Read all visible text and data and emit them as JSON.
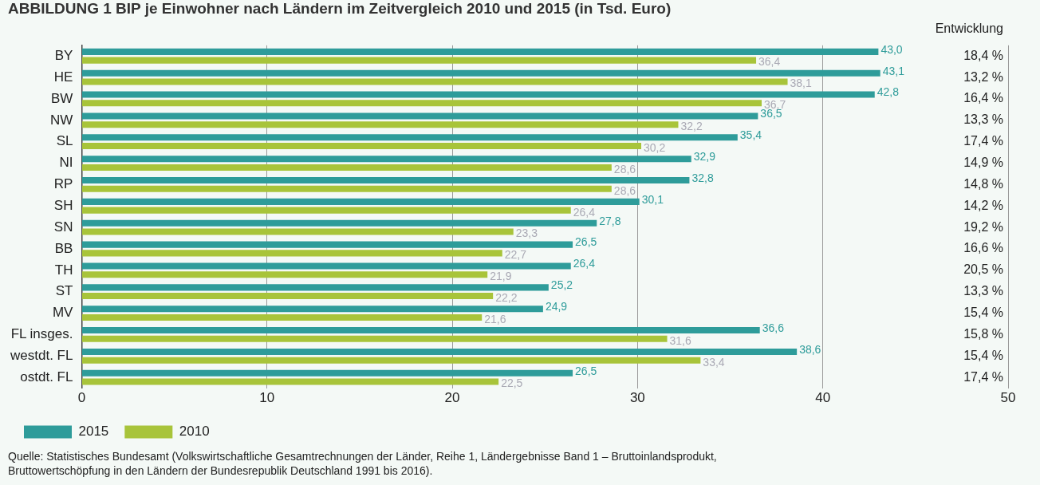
{
  "chart_data": {
    "type": "bar",
    "orientation": "horizontal",
    "title": "ABBILDUNG 1 BIP je Einwohner nach Ländern im Zeitvergleich 2010 und 2015 (in Tsd. Euro)",
    "categories": [
      "BY",
      "HE",
      "BW",
      "NW",
      "SL",
      "NI",
      "RP",
      "SH",
      "SN",
      "BB",
      "TH",
      "ST",
      "MV",
      "FL insges.",
      "westdt. FL",
      "ostdt. FL"
    ],
    "series": [
      {
        "name": "2015",
        "color": "#2e9c9a",
        "values": [
          43.0,
          43.1,
          42.8,
          36.5,
          35.4,
          32.9,
          32.8,
          30.1,
          27.8,
          26.5,
          26.4,
          25.2,
          24.9,
          36.6,
          38.6,
          26.5
        ],
        "value_labels": [
          "43,0",
          "43,1",
          "42,8",
          "36,5",
          "35,4",
          "32,9",
          "32,8",
          "30,1",
          "27,8",
          "26,5",
          "26,4",
          "25,2",
          "24,9",
          "36,6",
          "38,6",
          "26,5"
        ]
      },
      {
        "name": "2010",
        "color": "#a8c43a",
        "values": [
          36.4,
          38.1,
          36.7,
          32.2,
          30.2,
          28.6,
          28.6,
          26.4,
          23.3,
          22.7,
          21.9,
          22.2,
          21.6,
          31.6,
          33.4,
          22.5
        ],
        "value_labels": [
          "36,4",
          "38,1",
          "36,7",
          "32,2",
          "30,2",
          "28,6",
          "28,6",
          "26,4",
          "23,3",
          "22,7",
          "21,9",
          "22,2",
          "21,6",
          "31,6",
          "33,4",
          "22,5"
        ]
      }
    ],
    "xlim": [
      0,
      50
    ],
    "xticks": [
      0,
      10,
      20,
      30,
      40,
      50
    ],
    "grid": "x",
    "legend": "bottom left",
    "annotations": [
      "Entwicklung",
      "18,4 %",
      "13,2 %",
      "16,4 %",
      "13,3 %",
      "17,4 %",
      "14,9 %",
      "14,8 %",
      "14,2 %",
      "19,2 %",
      "16,6 %",
      "20,5 %",
      "13,3 %",
      "15,4 %",
      "15,8 %",
      "15,4 %",
      "17,4 %",
      "Quelle: Statistisches Bundesamt (Volkswirtschaftliche Gesamtrechnungen der Länder, Reihe 1, Ländergebnisse Band 1 – Bruttoinlandsprodukt, Bruttowertschöpfung in den Ländern der Bundesrepublik Deutschland 1991 bis 2016)."
    ]
  }
}
